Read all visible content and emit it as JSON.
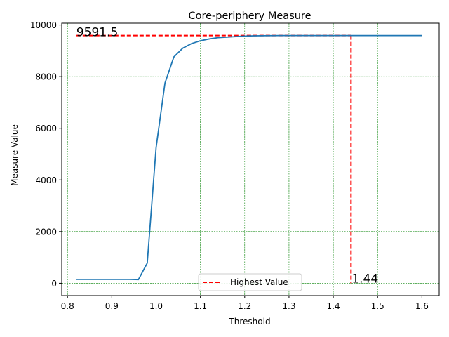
{
  "chart_data": {
    "type": "line",
    "title": "Core-periphery Measure",
    "xlabel": "Threshold",
    "ylabel": "Measure Value",
    "xlim": [
      0.787,
      1.639
    ],
    "ylim": [
      -478,
      10070
    ],
    "xticks": [
      0.8,
      0.9,
      1.0,
      1.1,
      1.2,
      1.3,
      1.4,
      1.5,
      1.6
    ],
    "xtick_labels": [
      "0.8",
      "0.9",
      "1.0",
      "1.1",
      "1.2",
      "1.3",
      "1.4",
      "1.5",
      "1.6"
    ],
    "yticks": [
      0,
      2000,
      4000,
      6000,
      8000,
      10000
    ],
    "ytick_labels": [
      "0",
      "2000",
      "4000",
      "6000",
      "8000",
      "10000"
    ],
    "grid": true,
    "grid_color": "#008000",
    "legend_position": "lower center",
    "series": [
      {
        "color": "#1f77b4",
        "x": [
          0.82,
          0.84,
          0.86,
          0.88,
          0.9,
          0.92,
          0.94,
          0.96,
          0.98,
          1.0,
          1.02,
          1.04,
          1.06,
          1.08,
          1.1,
          1.12,
          1.14,
          1.16,
          1.18,
          1.2,
          1.22,
          1.24,
          1.26,
          1.28,
          1.3,
          1.32,
          1.34,
          1.36,
          1.38,
          1.4,
          1.42,
          1.44,
          1.46,
          1.48,
          1.5,
          1.52,
          1.54,
          1.56,
          1.58,
          1.6
        ],
        "y": [
          150,
          150,
          150,
          150,
          150,
          150,
          150,
          140,
          780,
          5250,
          7750,
          8760,
          9100,
          9280,
          9390,
          9460,
          9510,
          9530,
          9550,
          9570,
          9580,
          9585,
          9588,
          9590,
          9590,
          9591,
          9591,
          9591,
          9591.5,
          9591.5,
          9591.5,
          9591.5,
          9591.5,
          9591.5,
          9591.5,
          9591.5,
          9591.5,
          9591.5,
          9591.5,
          9591.5
        ]
      }
    ],
    "highest": {
      "legend_label": "Highest Value",
      "color": "#ff0000",
      "x": 1.44,
      "y": 9591.5,
      "x_start": 0.82,
      "value_text": "9591.5",
      "x_text": "1.44"
    }
  }
}
